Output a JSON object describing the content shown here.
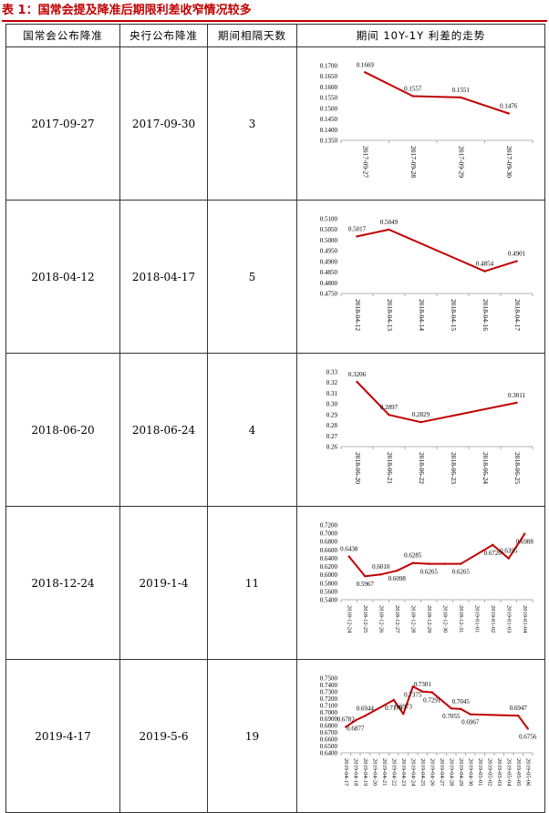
{
  "caption": "表 1：国常会提及降准后期限利差收窄情况较多",
  "headers": [
    "国常会公布降准",
    "央行公布降准",
    "期间相隔天数",
    "期间 10Y-1Y 利差的走势"
  ],
  "rows": [
    {
      "meeting": "2017-09-27",
      "pboc": "2017-09-30",
      "days": "3"
    },
    {
      "meeting": "2018-04-12",
      "pboc": "2018-04-17",
      "days": "5"
    },
    {
      "meeting": "2018-06-20",
      "pboc": "2018-06-24",
      "days": "4"
    },
    {
      "meeting": "2018-12-24",
      "pboc": "2019-1-4",
      "days": "11"
    },
    {
      "meeting": "2019-4-17",
      "pboc": "2019-5-6",
      "days": "19"
    }
  ],
  "colors": {
    "caption": "#c00000",
    "line": "#c00000"
  },
  "chart_data": [
    {
      "type": "line",
      "x": [
        "2017-09-27",
        "2017-09-28",
        "2017-09-29",
        "2017-09-30"
      ],
      "y": [
        0.1669,
        0.1557,
        0.1551,
        0.1476
      ],
      "ylim": [
        0.135,
        0.17
      ],
      "yticks": [
        0.135,
        0.14,
        0.145,
        0.15,
        0.155,
        0.16,
        0.165,
        0.17
      ],
      "ydec": 4,
      "labels": [
        "0.1669",
        "0.1557",
        "0.1551",
        "0.1476"
      ]
    },
    {
      "type": "line",
      "x": [
        "2018-04-12",
        "2018-04-13",
        "2018-04-14",
        "2018-04-15",
        "2018-04-16",
        "2018-04-17"
      ],
      "y": [
        0.5017,
        0.5049,
        null,
        null,
        0.4854,
        0.4901
      ],
      "ylim": [
        0.475,
        0.51
      ],
      "yticks": [
        0.475,
        0.48,
        0.485,
        0.49,
        0.495,
        0.5,
        0.505,
        0.51
      ],
      "ydec": 4,
      "labels": [
        "0.5017",
        "0.5049",
        "",
        "",
        "0.4854",
        "0.4901"
      ]
    },
    {
      "type": "line",
      "x": [
        "2018-06-20",
        "2018-06-21",
        "2018-06-22",
        "2018-06-23",
        "2018-06-24",
        "2018-06-25"
      ],
      "y": [
        0.3206,
        0.2897,
        0.2829,
        null,
        null,
        0.3011
      ],
      "ylim": [
        0.26,
        0.33
      ],
      "yticks": [
        0.26,
        0.27,
        0.28,
        0.29,
        0.3,
        0.31,
        0.32,
        0.33
      ],
      "ydec": 2,
      "labels": [
        "0.3206",
        "0.2897",
        "0.2829",
        "",
        "",
        "0.3011"
      ]
    },
    {
      "type": "line",
      "x": [
        "2018-12-24",
        "2018-12-25",
        "2018-12-26",
        "2018-12-27",
        "2018-12-28",
        "2018-12-29",
        "2018-12-30",
        "2018-12-31",
        "2019-01-01",
        "2019-01-02",
        "2019-01-03",
        "2019-01-04"
      ],
      "y": [
        0.6438,
        0.5967,
        0.601,
        0.6098,
        0.6285,
        0.6265,
        0.6265,
        0.6265,
        null,
        0.672,
        0.6395,
        0.6988
      ],
      "ylim": [
        0.54,
        0.72
      ],
      "yticks": [
        0.54,
        0.56,
        0.58,
        0.6,
        0.62,
        0.64,
        0.66,
        0.68,
        0.7,
        0.72
      ],
      "ydec": 4,
      "labels": [
        "0.6438",
        "0.5967",
        "0.6010",
        "0.6098",
        "0.6285",
        "0.6265",
        "",
        "0.6265",
        "",
        "0.6720",
        "0.6395",
        "0.6988"
      ]
    },
    {
      "type": "line",
      "x": [
        "2019-04-17",
        "2019-04-18",
        "2019-04-19",
        "2019-04-20",
        "2019-04-21",
        "2019-04-22",
        "2019-04-23",
        "2019-04-24",
        "2019-04-25",
        "2019-04-26",
        "2019-04-27",
        "2019-04-28",
        "2019-04-29",
        "2019-04-30",
        "2019-05-01",
        "2019-05-02",
        "2019-05-03",
        "2019-05-04",
        "2019-05-05",
        "2019-05-06"
      ],
      "y": [
        0.6782,
        0.6877,
        0.6944,
        null,
        null,
        0.7178,
        0.6973,
        0.7375,
        0.7301,
        0.7291,
        null,
        0.7055,
        0.7045,
        0.6967,
        null,
        null,
        null,
        null,
        0.6947,
        0.6756
      ],
      "ylim": [
        0.64,
        0.75
      ],
      "yticks": [
        0.64,
        0.65,
        0.66,
        0.67,
        0.68,
        0.69,
        0.7,
        0.71,
        0.72,
        0.73,
        0.74,
        0.75
      ],
      "ydec": 4,
      "labels": [
        "0.6782",
        "0.6877",
        "0.6944",
        "",
        "",
        "0.7178",
        "0.6973",
        "0.7375",
        "0.7301",
        "0.7291",
        "",
        "0.7055",
        "0.7045",
        "0.6967",
        "",
        "",
        "",
        "",
        "0.6947",
        "0.6756"
      ]
    }
  ]
}
